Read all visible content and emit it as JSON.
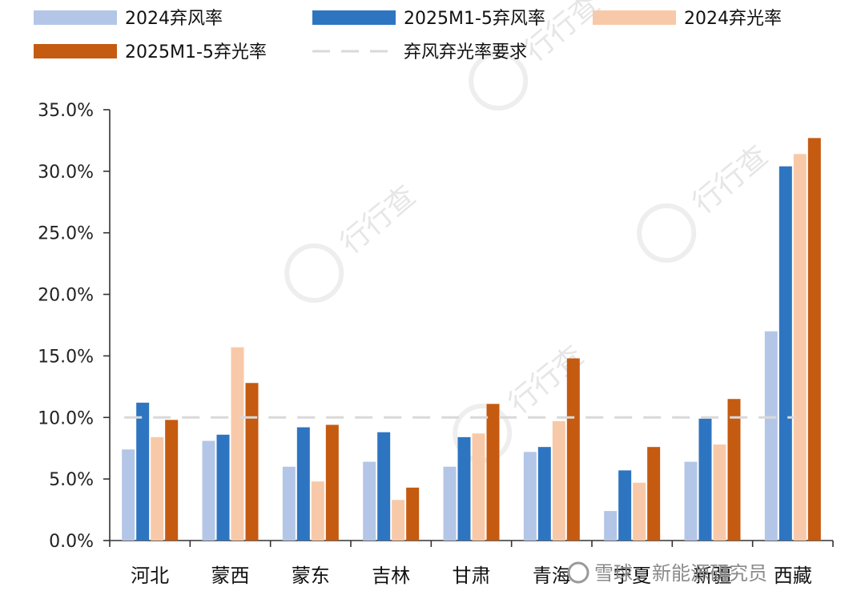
{
  "chart_data": {
    "type": "bar",
    "categories": [
      "河北",
      "蒙西",
      "蒙东",
      "吉林",
      "甘肃",
      "青海",
      "宁夏",
      "新疆",
      "西藏"
    ],
    "series": [
      {
        "name": "2024弃风率",
        "color": "#b4c6e7",
        "values": [
          7.4,
          8.1,
          6.0,
          6.4,
          6.0,
          7.2,
          2.4,
          6.4,
          17.0
        ]
      },
      {
        "name": "2025M1-5弃风率",
        "color": "#2e75c1",
        "values": [
          11.2,
          8.6,
          9.2,
          8.8,
          8.4,
          7.6,
          5.7,
          9.9,
          30.4
        ]
      },
      {
        "name": "2024弃光率",
        "color": "#f8c9a8",
        "values": [
          8.4,
          15.7,
          4.8,
          3.3,
          8.7,
          9.7,
          4.7,
          7.8,
          31.4
        ]
      },
      {
        "name": "2025M1-5弃光率",
        "color": "#c55a11",
        "values": [
          9.8,
          12.8,
          9.4,
          4.3,
          11.1,
          14.8,
          7.6,
          11.5,
          32.7
        ]
      }
    ],
    "reference_line": {
      "name": "弃风弃光率要求",
      "value": 10.0,
      "color": "#d9d9d9",
      "style": "dashed"
    },
    "y_ticks": [
      "0.0%",
      "5.0%",
      "10.0%",
      "15.0%",
      "20.0%",
      "25.0%",
      "30.0%",
      "35.0%"
    ],
    "ylim": [
      0,
      35
    ],
    "grid": false,
    "legend_position": "top"
  },
  "watermark": {
    "text": "行行查",
    "credit": "雪球：新能源研究员"
  }
}
